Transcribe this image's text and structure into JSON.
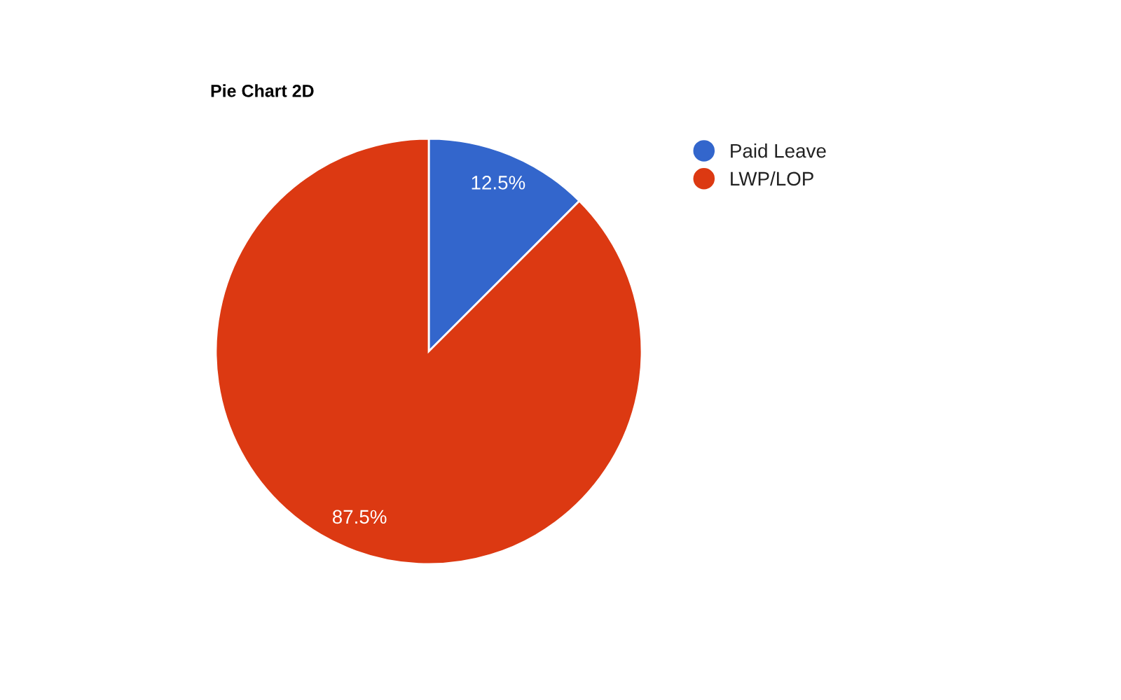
{
  "chart_data": {
    "type": "pie",
    "title": "Pie Chart 2D",
    "categories": [
      "Paid Leave",
      "LWP/LOP"
    ],
    "values": [
      12.5,
      87.5
    ],
    "colors": [
      "#3366cc",
      "#dc3912"
    ],
    "value_labels": [
      "12.5%",
      "87.5%"
    ],
    "legend": "right"
  }
}
